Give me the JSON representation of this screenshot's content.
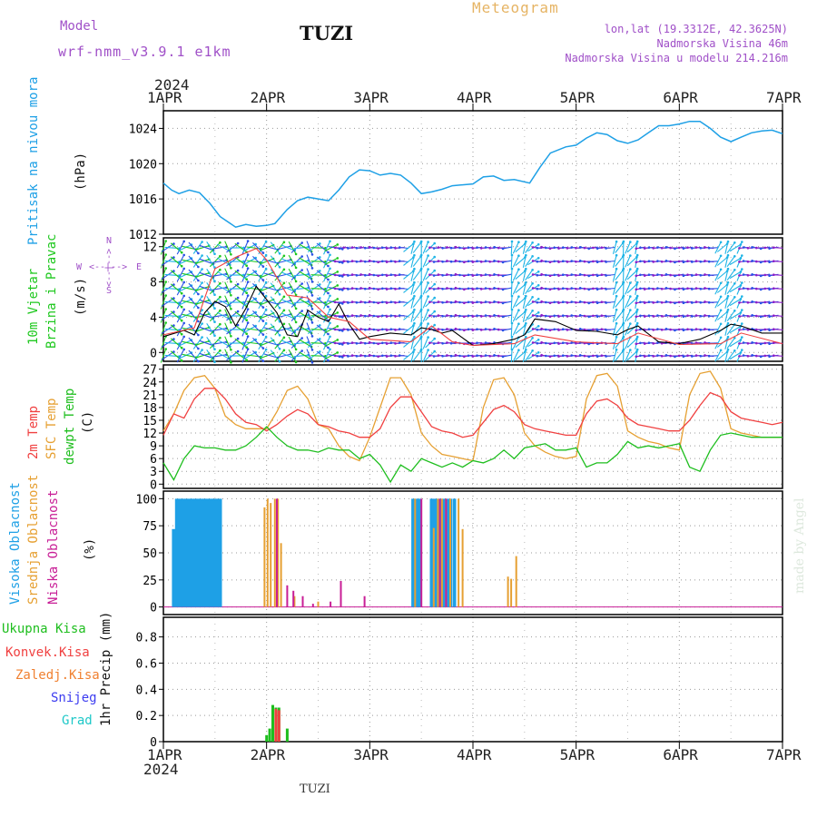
{
  "header": {
    "model_label": "Model",
    "model_name": "wrf-nmm_v3.9.1  e1km",
    "station": "TUZI",
    "meteogram": "Meteogram",
    "lonlat": "lon,lat (19.3312E, 42.3625N)",
    "elevation": "Nadmorska Visina 46m",
    "model_elevation": "Nadmorska Visina u modelu 214.216m"
  },
  "x_axis": {
    "year": "2024",
    "labels": [
      "1APR",
      "2APR",
      "3APR",
      "4APR",
      "5APR",
      "6APR",
      "7APR"
    ]
  },
  "footer": {
    "station": "TUZI",
    "credit": "made by Angel"
  },
  "colors": {
    "pressure": "#1ea0e6",
    "t2m": "#f04040",
    "tsfc": "#e6a032",
    "dewpt": "#1ebe1e",
    "high_cloud": "#1ea0e6",
    "mid_cloud": "#e6a032",
    "low_cloud": "#c81e96",
    "total_precip": "#1ebe1e",
    "conv_precip": "#f04040",
    "frz_precip": "#f08030",
    "snow": "#3c3cf0",
    "hail": "#1ec8c8",
    "wind_purple": "#8c1ec8",
    "wind_blue": "#2850e6",
    "wind_cyan": "#1eb4e6",
    "wind_green": "#1ec81e",
    "wind_speed": "#000000",
    "wind_gust": "#f04040"
  },
  "panels": {
    "pressure": {
      "label": "Pritisak na nivou mora",
      "unit": "(hPa)",
      "ticks": [
        "1012",
        "1016",
        "1020",
        "1024"
      ]
    },
    "wind": {
      "label1": "10m Vjetar",
      "label2": "Brzina i Pravac",
      "unit": "(m/s)",
      "ticks": [
        "0",
        "4",
        "8",
        "12"
      ],
      "compass_w": "W",
      "compass_e": "E",
      "compass_n": "N",
      "compass_s": "S",
      "compass_h": "<--|-->"
    },
    "temp": {
      "label1": "2m Temp",
      "label2": "SFC Temp",
      "label3": "dewpt Temp",
      "unit": "(C)",
      "ticks": [
        "0",
        "3",
        "6",
        "9",
        "12",
        "15",
        "18",
        "21",
        "24",
        "27"
      ]
    },
    "cloud": {
      "label1": "Visoka Oblacnost",
      "label2": "Srednja Oblacnost",
      "label3": "Niska Oblacnost",
      "unit": "(%)",
      "ticks": [
        "0",
        "25",
        "50",
        "75",
        "100"
      ]
    },
    "precip": {
      "legend": [
        "Ukupna Kisa",
        "Konvek.Kisa",
        "Zaledj.Kisa",
        "Snijeg",
        "Grad"
      ],
      "unit": "1hr Precip (mm)",
      "ticks": [
        "0",
        "0.2",
        "0.4",
        "0.6",
        "0.8"
      ]
    }
  },
  "chart_data": [
    {
      "type": "line",
      "title": "Pritisak na nivou mora",
      "ylabel": "(hPa)",
      "ylim": [
        1012,
        1026
      ],
      "x_unit": "days since 1APR 2024 00UTC",
      "series": [
        {
          "name": "Pritisak na nivou mora",
          "x": [
            0,
            0.08,
            0.15,
            0.25,
            0.35,
            0.45,
            0.55,
            0.7,
            0.8,
            0.9,
            1.0,
            1.08,
            1.2,
            1.3,
            1.4,
            1.5,
            1.6,
            1.7,
            1.8,
            1.9,
            2.0,
            2.1,
            2.2,
            2.3,
            2.4,
            2.5,
            2.6,
            2.7,
            2.8,
            2.9,
            3.0,
            3.1,
            3.2,
            3.3,
            3.4,
            3.55,
            3.65,
            3.75,
            3.9,
            4.0,
            4.1,
            4.2,
            4.3,
            4.4,
            4.5,
            4.6,
            4.7,
            4.8,
            4.9,
            5.0,
            5.1,
            5.2,
            5.3,
            5.4,
            5.5,
            5.6,
            5.7,
            5.8,
            5.9,
            6.0
          ],
          "values": [
            1017.8,
            1017.0,
            1016.6,
            1017.0,
            1016.7,
            1015.5,
            1014.0,
            1012.8,
            1013.1,
            1012.9,
            1013.0,
            1013.2,
            1014.8,
            1015.8,
            1016.2,
            1016.0,
            1015.8,
            1017.0,
            1018.5,
            1019.3,
            1019.2,
            1018.7,
            1018.9,
            1018.7,
            1017.8,
            1016.6,
            1016.8,
            1017.1,
            1017.5,
            1017.6,
            1017.7,
            1018.5,
            1018.6,
            1018.1,
            1018.2,
            1017.8,
            1019.6,
            1021.2,
            1021.9,
            1022.1,
            1022.9,
            1023.5,
            1023.3,
            1022.6,
            1022.3,
            1022.7,
            1023.5,
            1024.3,
            1024.3,
            1024.5,
            1024.8,
            1024.8,
            1024.0,
            1023.0,
            1022.5,
            1023.0,
            1023.5,
            1023.7,
            1023.8,
            1023.4
          ]
        }
      ]
    },
    {
      "type": "line",
      "title": "10m Vjetar Brzina i Pravac",
      "ylabel": "(m/s)",
      "ylim": [
        -1,
        13
      ],
      "x_unit": "days since 1APR 2024 00UTC",
      "series": [
        {
          "name": "speed",
          "x": [
            0,
            0.2,
            0.3,
            0.4,
            0.5,
            0.6,
            0.7,
            0.8,
            0.9,
            1.0,
            1.1,
            1.2,
            1.3,
            1.4,
            1.5,
            1.6,
            1.7,
            1.8,
            1.9,
            2.0,
            2.2,
            2.4,
            2.5,
            2.6,
            2.7,
            2.8,
            3.0,
            3.2,
            3.4,
            3.5,
            3.6,
            3.8,
            4.0,
            4.2,
            4.4,
            4.5,
            4.6,
            4.8,
            5.0,
            5.2,
            5.4,
            5.5,
            5.6,
            5.8,
            6.0
          ],
          "values": [
            1.8,
            2.5,
            2.0,
            4.5,
            5.8,
            5.2,
            3.0,
            5.0,
            7.5,
            6.0,
            4.5,
            2.0,
            1.8,
            4.8,
            4.0,
            3.5,
            5.5,
            3.2,
            1.5,
            1.8,
            2.2,
            2.0,
            2.8,
            2.6,
            2.2,
            2.5,
            0.8,
            1.0,
            1.5,
            2.0,
            3.8,
            3.5,
            2.5,
            2.4,
            2.0,
            2.6,
            3.0,
            1.2,
            1.0,
            1.5,
            2.5,
            3.2,
            3.0,
            2.2,
            2.2
          ]
        },
        {
          "name": "gust",
          "x": [
            0,
            0.3,
            0.5,
            0.7,
            0.9,
            1.0,
            1.2,
            1.4,
            1.6,
            1.8,
            2.0,
            2.4,
            2.6,
            2.8,
            3.0,
            3.4,
            3.6,
            4.0,
            4.4,
            4.6,
            5.0,
            5.4,
            5.6,
            6.0
          ],
          "values": [
            2.0,
            2.8,
            9.5,
            10.8,
            11.8,
            10.5,
            6.5,
            6.2,
            4.0,
            3.5,
            1.5,
            1.2,
            3.0,
            1.2,
            0.8,
            1.0,
            2.0,
            1.2,
            1.0,
            2.2,
            0.9,
            1.0,
            2.2,
            1.0
          ]
        }
      ]
    },
    {
      "type": "line",
      "title": "Temp",
      "ylabel": "(C)",
      "ylim": [
        -1,
        28
      ],
      "x_unit": "days since 1APR 2024 00UTC",
      "series": [
        {
          "name": "2m Temp",
          "x": [
            0,
            0.1,
            0.2,
            0.3,
            0.4,
            0.5,
            0.6,
            0.7,
            0.8,
            0.9,
            1.0,
            1.1,
            1.2,
            1.3,
            1.4,
            1.5,
            1.6,
            1.7,
            1.8,
            1.9,
            2.0,
            2.1,
            2.2,
            2.3,
            2.4,
            2.5,
            2.6,
            2.7,
            2.8,
            2.9,
            3.0,
            3.1,
            3.2,
            3.3,
            3.4,
            3.5,
            3.6,
            3.7,
            3.8,
            3.9,
            4.0,
            4.1,
            4.2,
            4.3,
            4.4,
            4.5,
            4.6,
            4.7,
            4.8,
            4.9,
            5.0,
            5.1,
            5.2,
            5.3,
            5.4,
            5.5,
            5.6,
            5.7,
            5.8,
            5.9,
            6.0
          ],
          "values": [
            11.5,
            16.5,
            15.5,
            20.0,
            22.5,
            22.5,
            20.0,
            16.5,
            14.5,
            14.0,
            12.5,
            14.0,
            16.0,
            17.5,
            16.5,
            14.0,
            13.5,
            12.5,
            12.0,
            11.0,
            11.0,
            13.0,
            18.0,
            20.5,
            20.5,
            17.0,
            13.5,
            12.5,
            12.0,
            11.0,
            11.5,
            14.5,
            17.5,
            18.5,
            17.0,
            14.0,
            13.0,
            12.5,
            12.0,
            11.5,
            11.5,
            16.5,
            19.5,
            20.0,
            18.5,
            15.5,
            14.0,
            13.5,
            13.0,
            12.5,
            12.5,
            15.0,
            18.5,
            21.5,
            20.5,
            17.0,
            15.5,
            15.0,
            14.5,
            14.0,
            14.5
          ]
        },
        {
          "name": "SFC Temp",
          "x": [
            0,
            0.1,
            0.2,
            0.3,
            0.4,
            0.5,
            0.6,
            0.7,
            0.8,
            0.9,
            1.0,
            1.1,
            1.2,
            1.3,
            1.4,
            1.5,
            1.6,
            1.7,
            1.8,
            1.9,
            2.0,
            2.1,
            2.2,
            2.3,
            2.4,
            2.5,
            2.6,
            2.7,
            2.8,
            2.9,
            3.0,
            3.1,
            3.2,
            3.3,
            3.4,
            3.5,
            3.6,
            3.7,
            3.8,
            3.9,
            4.0,
            4.1,
            4.2,
            4.3,
            4.4,
            4.5,
            4.6,
            4.7,
            4.8,
            4.9,
            5.0,
            5.1,
            5.2,
            5.3,
            5.4,
            5.5,
            5.6,
            5.7,
            5.8,
            5.9,
            6.0
          ],
          "values": [
            12.5,
            16.5,
            22.0,
            25.0,
            25.5,
            22.5,
            16.0,
            14.0,
            13.0,
            13.0,
            13.0,
            17.0,
            22.0,
            23.0,
            20.0,
            14.0,
            13.0,
            9.0,
            6.5,
            5.5,
            11.0,
            18.0,
            25.0,
            25.0,
            21.0,
            12.0,
            9.0,
            7.0,
            6.5,
            6.0,
            5.5,
            18.0,
            24.5,
            25.0,
            21.0,
            12.0,
            9.0,
            7.5,
            6.5,
            6.0,
            6.5,
            20.0,
            25.5,
            26.0,
            23.0,
            12.5,
            11.0,
            10.0,
            9.5,
            8.5,
            8.0,
            21.0,
            26.0,
            26.5,
            22.5,
            13.0,
            12.0,
            11.5,
            11.0,
            11.0,
            11.0
          ]
        },
        {
          "name": "dewpt Temp",
          "x": [
            0,
            0.1,
            0.2,
            0.3,
            0.4,
            0.5,
            0.6,
            0.7,
            0.8,
            0.9,
            1.0,
            1.1,
            1.2,
            1.3,
            1.4,
            1.5,
            1.6,
            1.7,
            1.8,
            1.9,
            2.0,
            2.1,
            2.2,
            2.3,
            2.4,
            2.5,
            2.6,
            2.7,
            2.8,
            2.9,
            3.0,
            3.1,
            3.2,
            3.3,
            3.4,
            3.5,
            3.6,
            3.7,
            3.8,
            3.9,
            4.0,
            4.1,
            4.2,
            4.3,
            4.4,
            4.5,
            4.6,
            4.7,
            4.8,
            4.9,
            5.0,
            5.1,
            5.2,
            5.3,
            5.4,
            5.5,
            5.6,
            5.7,
            5.8,
            5.9,
            6.0
          ],
          "values": [
            5.0,
            1.0,
            6.0,
            9.0,
            8.5,
            8.5,
            8.0,
            8.0,
            9.0,
            11.0,
            13.5,
            11.0,
            9.0,
            8.0,
            8.0,
            7.5,
            8.5,
            8.0,
            8.0,
            6.0,
            7.0,
            4.5,
            0.5,
            4.5,
            3.0,
            6.0,
            5.0,
            4.0,
            5.0,
            4.0,
            5.5,
            5.0,
            6.0,
            8.0,
            6.0,
            8.5,
            9.0,
            9.5,
            8.0,
            8.0,
            8.5,
            4.0,
            5.0,
            5.0,
            7.0,
            10.0,
            8.5,
            9.0,
            8.5,
            9.0,
            9.5,
            4.0,
            3.0,
            8.0,
            11.5,
            12.0,
            11.5,
            11.0,
            11.0,
            11.0,
            11.0
          ]
        }
      ]
    },
    {
      "type": "bar",
      "title": "Oblacnost",
      "ylabel": "(%)",
      "ylim": [
        0,
        100
      ],
      "x_unit": "days since 1APR 2024 00UTC",
      "series": [
        {
          "name": "Visoka Oblacnost",
          "x": [
            0.1,
            0.13,
            0.16,
            0.19,
            0.22,
            0.25,
            0.28,
            0.31,
            0.34,
            0.37,
            0.4,
            0.43,
            0.46,
            0.49,
            0.52,
            0.55,
            2.42,
            2.45,
            2.48,
            2.6,
            2.63,
            2.66,
            2.69,
            2.72,
            2.75,
            2.78,
            2.82
          ],
          "values": [
            72,
            100,
            100,
            100,
            100,
            100,
            100,
            100,
            100,
            100,
            100,
            100,
            100,
            100,
            100,
            100,
            100,
            100,
            100,
            100,
            100,
            100,
            100,
            100,
            100,
            100,
            100
          ]
        },
        {
          "name": "Srednja Oblacnost",
          "x": [
            0.98,
            1.01,
            1.04,
            1.08,
            1.11,
            1.14,
            1.27,
            1.5,
            1.72,
            2.44,
            2.62,
            2.66,
            2.7,
            2.74,
            2.78,
            2.86,
            2.9,
            3.34,
            3.37,
            3.42
          ],
          "values": [
            92,
            100,
            96,
            100,
            100,
            59,
            10,
            5,
            10,
            100,
            73,
            100,
            100,
            100,
            100,
            100,
            72,
            28,
            26,
            47
          ]
        },
        {
          "name": "Niska Oblacnost",
          "x": [
            1.1,
            1.2,
            1.26,
            1.35,
            1.45,
            1.62,
            1.72,
            1.95,
            2.5,
            2.68,
            2.74
          ],
          "values": [
            100,
            20,
            15,
            10,
            3,
            5,
            24,
            10,
            100,
            100,
            100
          ]
        }
      ]
    },
    {
      "type": "bar",
      "title": "1hr Precip",
      "ylabel": "1hr Precip (mm)",
      "ylim": [
        0,
        0.95
      ],
      "x_unit": "days since 1APR 2024 00UTC",
      "series": [
        {
          "name": "Ukupna Kisa",
          "x": [
            1.0,
            1.03,
            1.06,
            1.09,
            1.12,
            1.2
          ],
          "values": [
            0.05,
            0.1,
            0.28,
            0.26,
            0.26,
            0.1
          ]
        },
        {
          "name": "Konvek.Kisa",
          "x": [
            1.09,
            1.12
          ],
          "values": [
            0.25,
            0.24
          ]
        },
        {
          "name": "Zaledj.Kisa",
          "x": [],
          "values": []
        },
        {
          "name": "Snijeg",
          "x": [],
          "values": []
        },
        {
          "name": "Grad",
          "x": [],
          "values": []
        }
      ]
    }
  ]
}
